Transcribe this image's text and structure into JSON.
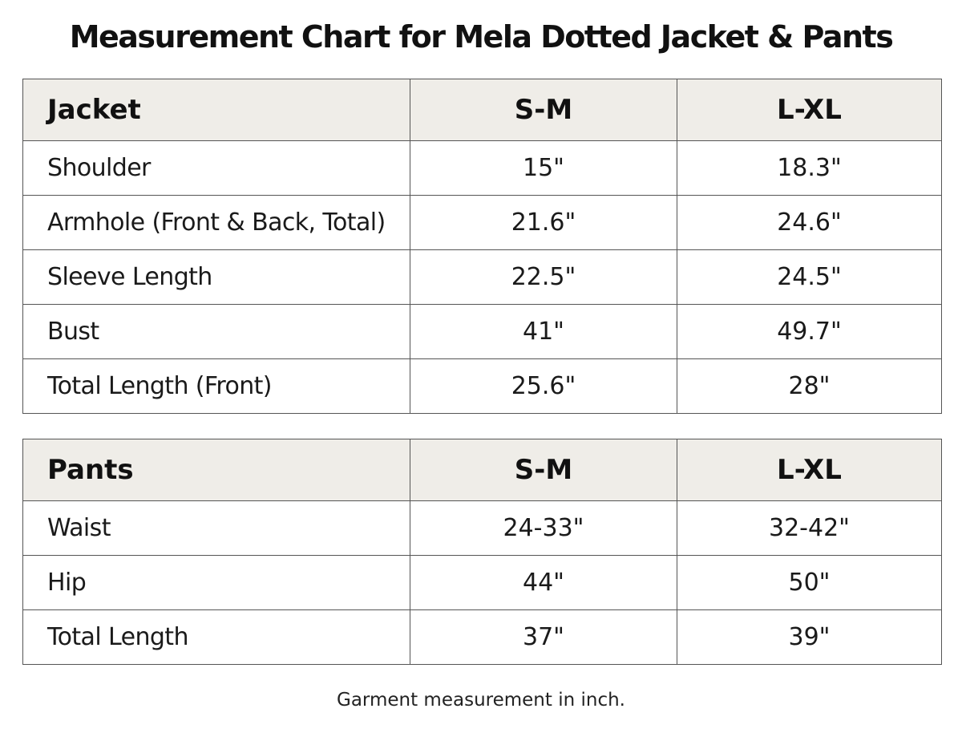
{
  "title": "Measurement Chart for Mela Dotted Jacket & Pants",
  "jacket": {
    "header": [
      "Jacket",
      "S-M",
      "L-XL"
    ],
    "rows": [
      [
        "Shoulder",
        "15\"",
        "18.3\""
      ],
      [
        "Armhole (Front & Back, Total)",
        "21.6\"",
        "24.6\""
      ],
      [
        "Sleeve Length",
        "22.5\"",
        "24.5\""
      ],
      [
        "Bust",
        "41\"",
        "49.7\""
      ],
      [
        "Total Length (Front)",
        "25.6\"",
        "28\""
      ]
    ]
  },
  "pants": {
    "header": [
      "Pants",
      "S-M",
      "L-XL"
    ],
    "rows": [
      [
        "Waist",
        "24-33\"",
        "32-42\""
      ],
      [
        "Hip",
        "44\"",
        "50\""
      ],
      [
        "Total Length",
        "37\"",
        "39\""
      ]
    ]
  },
  "footnote": "Garment measurement in inch.",
  "colors": {
    "header_background": "#efede8",
    "border": "#555555",
    "text": "#1a1a1a"
  }
}
